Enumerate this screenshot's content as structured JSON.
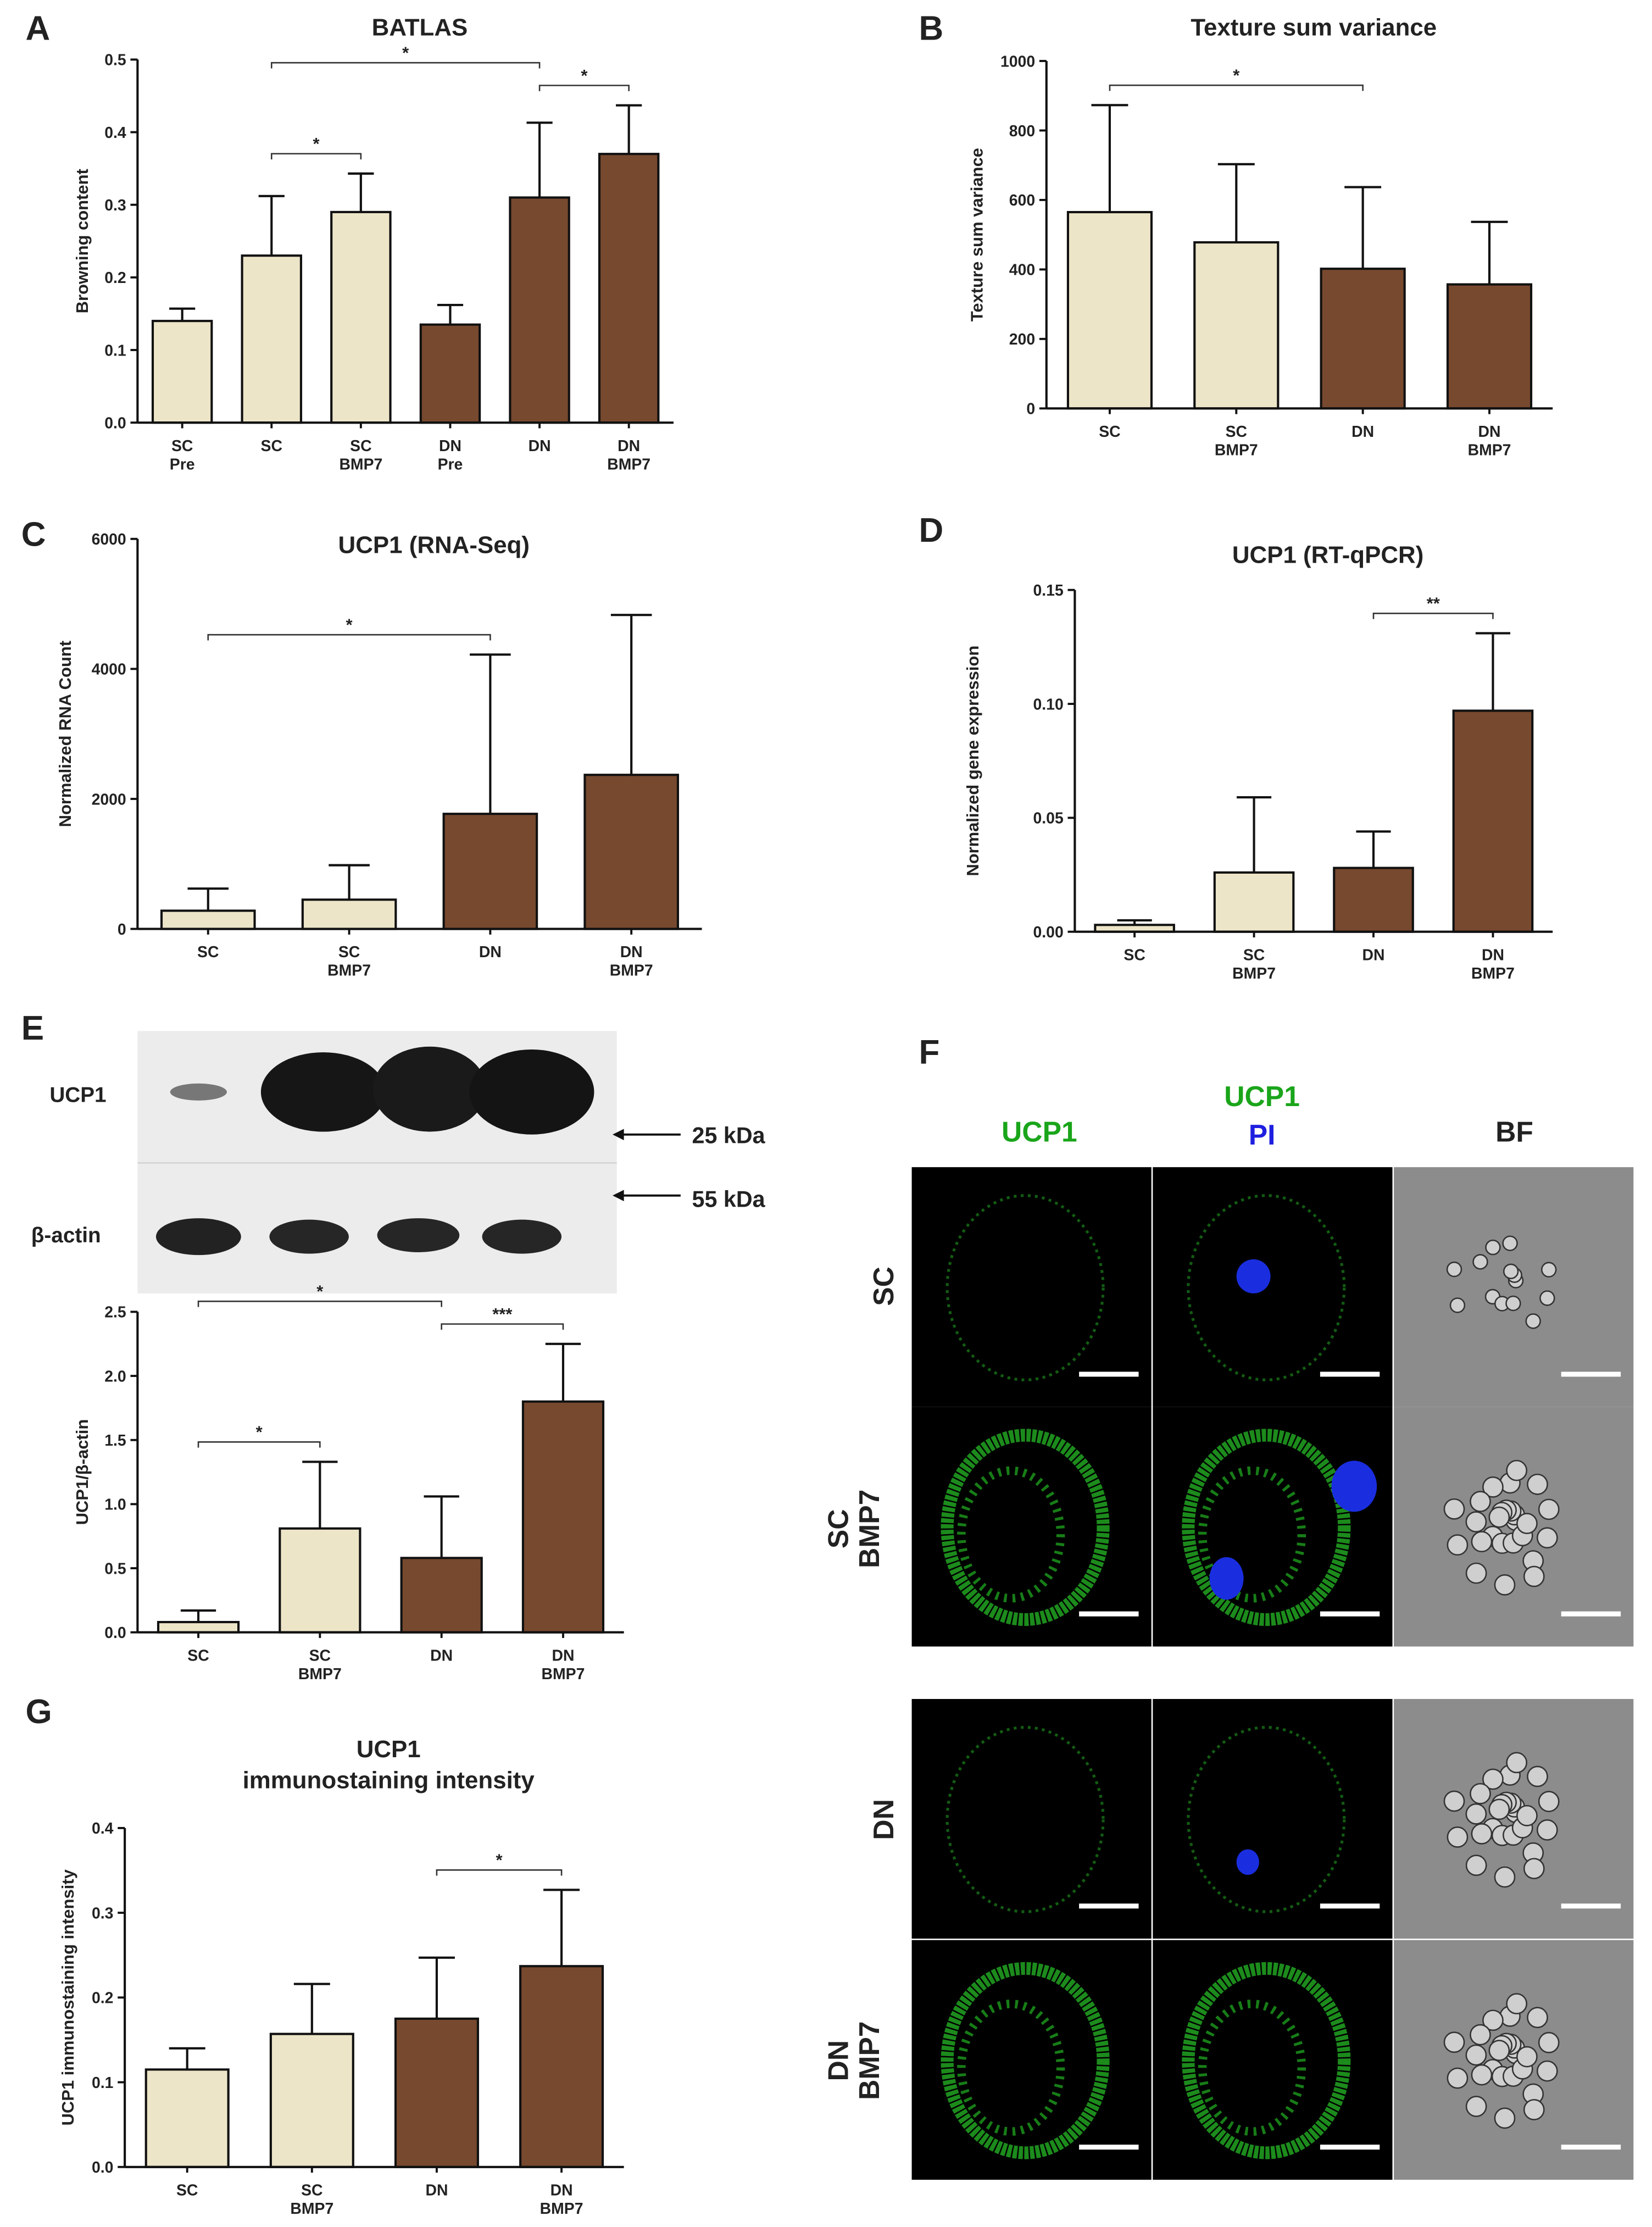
{
  "panel_labels": [
    "A",
    "B",
    "C",
    "D",
    "E",
    "F",
    "G"
  ],
  "chart_data": [
    {
      "type": "bar",
      "title": "BATLAS",
      "y_label": "Browning content",
      "categories": [
        "SC Pre",
        "SC",
        "SC BMP7",
        "DN Pre",
        "DN",
        "DN BMP7"
      ],
      "values": [
        0.14,
        0.23,
        0.29,
        0.135,
        0.31,
        0.37
      ],
      "errors": [
        0.017,
        0.082,
        0.053,
        0.027,
        0.103,
        0.067
      ],
      "colors": [
        "#ede5c8",
        "#ede5c8",
        "#ede5c8",
        "#77492f",
        "#77492f",
        "#77492f"
      ],
      "ylim": [
        0,
        0.5
      ],
      "yticks": [
        {
          "value": 0,
          "label": "0.0"
        },
        0.1,
        0.2,
        0.3,
        0.4,
        0.5
      ],
      "significance": [
        {
          "from": "SC",
          "to": "SC BMP7",
          "label": "*"
        },
        {
          "from": "DN",
          "to": "DN BMP7",
          "label": "*"
        },
        {
          "from": "SC",
          "to": "DN",
          "label": "*"
        }
      ]
    },
    {
      "type": "bar",
      "title": "Texture sum variance",
      "y_label": "Texture sum variance",
      "categories": [
        "SC",
        "SC BMP7",
        "DN",
        "DN BMP7"
      ],
      "values": [
        565,
        478,
        402,
        357
      ],
      "errors": [
        308,
        225,
        235,
        180
      ],
      "colors": [
        "#ede5c8",
        "#ede5c8",
        "#77492f",
        "#77492f"
      ],
      "ylim": [
        0,
        1000
      ],
      "yticks": [
        0,
        200,
        400,
        600,
        800,
        1000
      ],
      "significance": [
        {
          "from": "SC",
          "to": "DN",
          "label": "*"
        }
      ]
    },
    {
      "type": "bar",
      "title": "UCP1 (RNA-Seq)",
      "y_label": "Normalized RNA Count",
      "categories": [
        "SC",
        "SC BMP7",
        "DN",
        "DN BMP7"
      ],
      "values": [
        280,
        450,
        1770,
        2370
      ],
      "errors": [
        340,
        530,
        2450,
        2460
      ],
      "colors": [
        "#ede5c8",
        "#ede5c8",
        "#77492f",
        "#77492f"
      ],
      "ylim": [
        0,
        6000
      ],
      "yticks": [
        0,
        2000,
        4000,
        6000
      ],
      "significance": [
        {
          "from": "SC",
          "to": "DN",
          "label": "*"
        }
      ]
    },
    {
      "type": "bar",
      "title": "UCP1 (RT-qPCR)",
      "y_label": "Normalized gene expression",
      "categories": [
        "SC",
        "SC BMP7",
        "DN",
        "DN BMP7"
      ],
      "values": [
        0.003,
        0.026,
        0.028,
        0.097
      ],
      "errors": [
        0.002,
        0.033,
        0.016,
        0.034
      ],
      "colors": [
        "#ede5c8",
        "#ede5c8",
        "#77492f",
        "#77492f"
      ],
      "ylim": [
        0,
        0.15
      ],
      "yticks": [
        {
          "value": 0,
          "label": "0.00"
        },
        0.05,
        {
          "value": 0.1,
          "label": "0.10"
        },
        0.15
      ],
      "significance": [
        {
          "from": "DN",
          "to": "DN BMP7",
          "label": "**"
        }
      ]
    },
    {
      "type": "bar",
      "y_label": "UCP1/β-actin",
      "categories": [
        "SC",
        "SC BMP7",
        "DN",
        "DN BMP7"
      ],
      "values": [
        0.08,
        0.81,
        0.58,
        1.8
      ],
      "errors": [
        0.09,
        0.52,
        0.48,
        0.45
      ],
      "colors": [
        "#ede5c8",
        "#ede5c8",
        "#77492f",
        "#77492f"
      ],
      "ylim": [
        0,
        2.5
      ],
      "yticks": [
        {
          "value": 0,
          "label": "0.0"
        },
        0.5,
        {
          "value": 1,
          "label": "1.0"
        },
        1.5,
        {
          "value": 2,
          "label": "2.0"
        },
        2.5
      ],
      "significance": [
        {
          "from": "SC",
          "to": "SC BMP7",
          "label": "*"
        },
        {
          "from": "DN",
          "to": "DN BMP7",
          "label": "***"
        },
        {
          "from": "SC",
          "to": "DN",
          "label": "*"
        }
      ]
    },
    {
      "type": "bar",
      "title": "UCP1 immunostaining intensity",
      "y_label": "UCP1 immunostaining intensity",
      "categories": [
        "SC",
        "SC BMP7",
        "DN",
        "DN BMP7"
      ],
      "values": [
        0.115,
        0.157,
        0.175,
        0.237
      ],
      "errors": [
        0.025,
        0.059,
        0.072,
        0.09
      ],
      "colors": [
        "#ede5c8",
        "#ede5c8",
        "#77492f",
        "#77492f"
      ],
      "ylim": [
        0,
        0.4
      ],
      "yticks": [
        {
          "value": 0,
          "label": "0.0"
        },
        0.1,
        0.2,
        0.3,
        0.4
      ],
      "significance": [
        {
          "from": "DN",
          "to": "DN BMP7",
          "label": "*"
        }
      ]
    }
  ],
  "blot": {
    "bands": [
      "UCP1",
      "β-actin"
    ],
    "markers": [
      "25 kDa",
      "55 kDa"
    ]
  },
  "microscopy": {
    "columns": [
      [
        "UCP1"
      ],
      [
        "UCP1",
        "PI"
      ],
      [
        "BF"
      ]
    ],
    "rows": [
      "SC",
      "SC BMP7",
      "DN",
      "DN BMP7"
    ]
  }
}
